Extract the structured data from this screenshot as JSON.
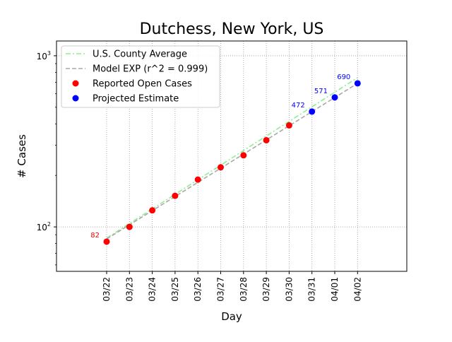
{
  "chart_data": {
    "type": "scatter",
    "title": "Dutchess, New York, US",
    "xlabel": "Day",
    "ylabel": "# Cases",
    "y_scale": "log",
    "ylim": [
      55,
      1220
    ],
    "grid": true,
    "legend_position": "top-left",
    "categories": [
      "03/22",
      "03/23",
      "03/24",
      "03/25",
      "03/26",
      "03/27",
      "03/28",
      "03/29",
      "03/30",
      "03/31",
      "04/01",
      "04/02"
    ],
    "y_ticks": [
      {
        "value": 100,
        "base": "10",
        "exp": "2"
      },
      {
        "value": 1000,
        "base": "10",
        "exp": "3"
      }
    ],
    "series": [
      {
        "name": "U.S. County Average",
        "kind": "line",
        "style": "dashdot",
        "color": "#90ee90",
        "x": [
          "03/22",
          "04/02"
        ],
        "values": [
          86,
          745
        ]
      },
      {
        "name": "Model EXP (r^2 = 0.999)",
        "kind": "line",
        "style": "dashed",
        "color": "#a9a9a9",
        "x": [
          "03/22",
          "04/02"
        ],
        "values": [
          85,
          690
        ]
      },
      {
        "name": "Reported Open Cases",
        "kind": "scatter",
        "color": "#ff0000",
        "x": [
          "03/22",
          "03/23",
          "03/24",
          "03/25",
          "03/26",
          "03/27",
          "03/28",
          "03/29",
          "03/30"
        ],
        "values": [
          82,
          100,
          125,
          152,
          189,
          223,
          262,
          321,
          392
        ]
      },
      {
        "name": "Projected Estimate",
        "kind": "scatter",
        "color": "#0000ff",
        "x": [
          "03/31",
          "04/01",
          "04/02"
        ],
        "values": [
          472,
          571,
          690
        ]
      }
    ],
    "annotations": [
      {
        "x": "03/22",
        "value": 82,
        "text": "82",
        "color": "#ff0000"
      },
      {
        "x": "03/31",
        "value": 472,
        "text": "472",
        "color": "#0000ff"
      },
      {
        "x": "04/01",
        "value": 571,
        "text": "571",
        "color": "#0000ff"
      },
      {
        "x": "04/02",
        "value": 690,
        "text": "690",
        "color": "#0000ff"
      }
    ]
  }
}
